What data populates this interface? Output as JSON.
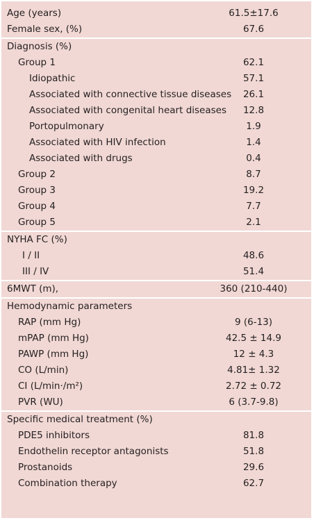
{
  "sections": [
    {
      "rows": [
        {
          "label": "Age (years)",
          "value": "61.5±17.6"
        },
        {
          "label": "Female sex, (%)",
          "value": "67.6"
        }
      ]
    },
    {
      "rows": [
        {
          "label": "Diagnosis (%)"
        },
        {
          "label": "Group 1",
          "value": "62.1"
        },
        {
          "label": "Idiopathic",
          "value": "57.1"
        },
        {
          "label": "Associated with connective tissue diseases",
          "value": "26.1"
        },
        {
          "label": "Associated with congenital heart diseases",
          "value": "12.8"
        },
        {
          "label": "Portopulmonary",
          "value": "1.9"
        },
        {
          "label": "Associated with HIV infection",
          "value": "1.4"
        },
        {
          "label": "Associated with drugs",
          "value": "0.4"
        },
        {
          "label": "Group 2",
          "value": "8.7"
        },
        {
          "label": "Group 3",
          "value": "19.2"
        },
        {
          "label": "Group 4",
          "value": "7.7"
        },
        {
          "label": "Group 5",
          "value": "2.1"
        }
      ]
    },
    {
      "rows": [
        {
          "label": "NYHA FC (%)"
        },
        {
          "label": "I / II",
          "value": "48.6"
        },
        {
          "label": "III / IV",
          "value": "51.4"
        }
      ]
    },
    {
      "rows": [
        {
          "label": "6MWT (m),",
          "value": "360 (210-440)"
        }
      ]
    },
    {
      "rows": [
        {
          "label": "Hemodynamic parameters"
        },
        {
          "label": "RAP (mm Hg)",
          "value": "9 (6-13)"
        },
        {
          "label": "mPAP (mm Hg)",
          "value": "42.5 ± 14.9"
        },
        {
          "label": "PAWP (mm Hg)",
          "value": "12 ± 4.3"
        },
        {
          "label": "CO (L/min)",
          "value": "4.81± 1.32"
        },
        {
          "label": "CI (L/min·/m²)",
          "value": "2.72 ± 0.72"
        },
        {
          "label": "PVR (WU)",
          "value": "6 (3.7-9.8)"
        }
      ]
    },
    {
      "rows": [
        {
          "label": "Specific medical treatment (%)"
        },
        {
          "label": "PDE5 inhibitors",
          "value": "81.8"
        },
        {
          "label": "Endothelin receptor antagonists",
          "value": "51.8"
        },
        {
          "label": "Prostanoids",
          "value": "29.6"
        },
        {
          "label": "Combination therapy",
          "value": "62.7"
        }
      ]
    }
  ]
}
